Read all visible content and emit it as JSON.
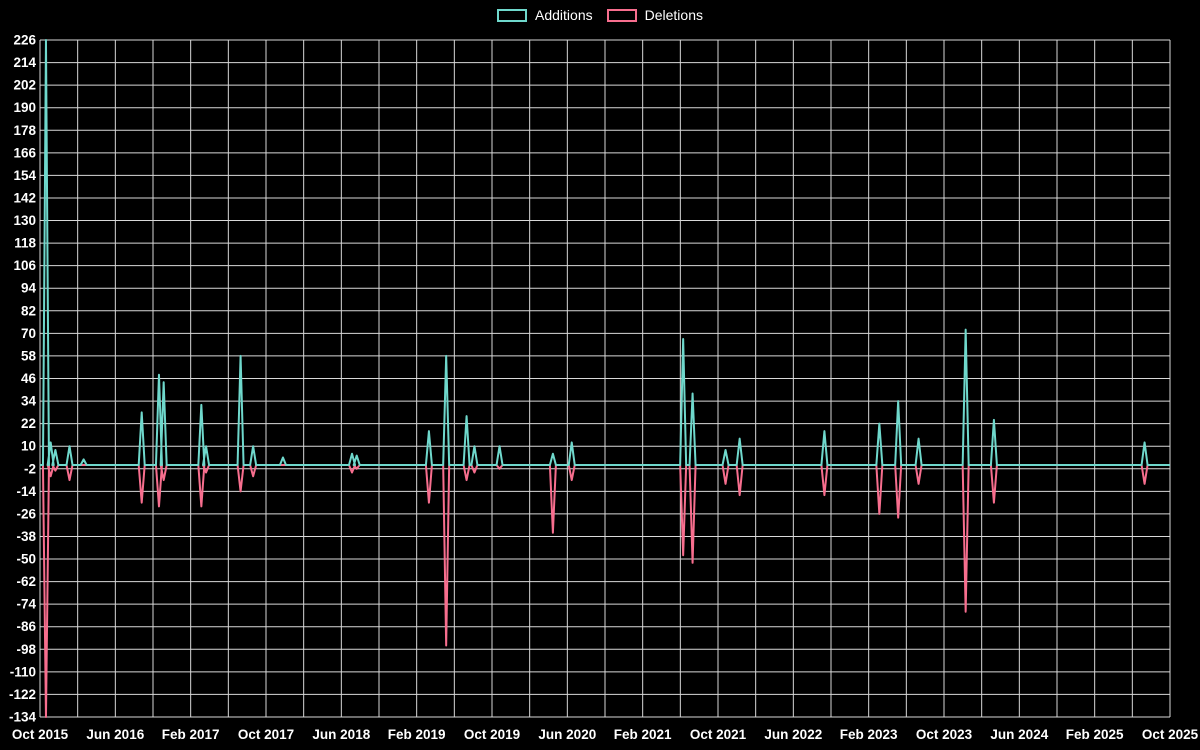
{
  "legend": {
    "additions_label": "Additions",
    "deletions_label": "Deletions"
  },
  "chart_data": {
    "type": "area",
    "series": [
      {
        "name": "Additions",
        "color": "#6fd8cc"
      },
      {
        "name": "Deletions",
        "color": "#f76e8e"
      }
    ],
    "background": "#000000",
    "grid_color": "#ffffff",
    "text_color": "#ffffff",
    "legend_position": "top-center",
    "grid": "on",
    "y_axis": {
      "max": 226,
      "min": -134,
      "tick_step": 12,
      "ticks": [
        226,
        214,
        202,
        190,
        178,
        166,
        154,
        142,
        130,
        118,
        106,
        94,
        82,
        70,
        58,
        46,
        34,
        22,
        10,
        -2,
        -14,
        -26,
        -38,
        -50,
        -62,
        -74,
        -86,
        -98,
        -110,
        -122,
        -134
      ]
    },
    "x_axis": {
      "start": {
        "year": 2015,
        "month": 10
      },
      "total_months": 120,
      "label_interval_months": 8,
      "grid_interval_months": 4,
      "ticks": [
        "Oct 2015",
        "Jun 2016",
        "Feb 2017",
        "Oct 2017",
        "Jun 2018",
        "Feb 2019",
        "Oct 2019",
        "Jun 2020",
        "Feb 2021",
        "Oct 2021",
        "Jun 2022",
        "Feb 2023",
        "Oct 2023",
        "Jun 2024",
        "Feb 2025",
        "Oct 2025"
      ]
    },
    "points": [
      {
        "date": "2015-10-20",
        "additions": 226,
        "deletions": -134
      },
      {
        "date": "2015-11-05",
        "additions": 12,
        "deletions": -6
      },
      {
        "date": "2015-11-20",
        "additions": 8,
        "deletions": -3
      },
      {
        "date": "2016-01-05",
        "additions": 10,
        "deletions": -8
      },
      {
        "date": "2016-02-20",
        "additions": 3,
        "deletions": 0
      },
      {
        "date": "2016-08-25",
        "additions": 28,
        "deletions": -20
      },
      {
        "date": "2016-10-20",
        "additions": 48,
        "deletions": -22
      },
      {
        "date": "2016-11-05",
        "additions": 44,
        "deletions": -8
      },
      {
        "date": "2017-03-05",
        "additions": 32,
        "deletions": -22
      },
      {
        "date": "2017-03-20",
        "additions": 10,
        "deletions": -4
      },
      {
        "date": "2017-07-10",
        "additions": 58,
        "deletions": -14
      },
      {
        "date": "2017-08-20",
        "additions": 10,
        "deletions": -6
      },
      {
        "date": "2017-11-25",
        "additions": 4,
        "deletions": 0
      },
      {
        "date": "2018-07-05",
        "additions": 6,
        "deletions": -4
      },
      {
        "date": "2018-07-20",
        "additions": 5,
        "deletions": -2
      },
      {
        "date": "2019-03-10",
        "additions": 18,
        "deletions": -20
      },
      {
        "date": "2019-05-05",
        "additions": 58,
        "deletions": -96
      },
      {
        "date": "2019-07-10",
        "additions": 26,
        "deletions": -8
      },
      {
        "date": "2019-08-05",
        "additions": 10,
        "deletions": -4
      },
      {
        "date": "2019-10-25",
        "additions": 10,
        "deletions": -2
      },
      {
        "date": "2020-04-15",
        "additions": 6,
        "deletions": -36
      },
      {
        "date": "2020-06-15",
        "additions": 12,
        "deletions": -8
      },
      {
        "date": "2021-06-10",
        "additions": 67,
        "deletions": -48
      },
      {
        "date": "2021-07-10",
        "additions": 38,
        "deletions": -52
      },
      {
        "date": "2021-10-25",
        "additions": 8,
        "deletions": -10
      },
      {
        "date": "2021-12-10",
        "additions": 14,
        "deletions": -16
      },
      {
        "date": "2022-09-10",
        "additions": 18,
        "deletions": -16
      },
      {
        "date": "2023-03-05",
        "additions": 22,
        "deletions": -26
      },
      {
        "date": "2023-05-05",
        "additions": 34,
        "deletions": -28
      },
      {
        "date": "2023-07-10",
        "additions": 14,
        "deletions": -10
      },
      {
        "date": "2023-12-10",
        "additions": 72,
        "deletions": -78
      },
      {
        "date": "2024-03-10",
        "additions": 24,
        "deletions": -20
      },
      {
        "date": "2025-07-10",
        "additions": 12,
        "deletions": -10
      }
    ]
  }
}
